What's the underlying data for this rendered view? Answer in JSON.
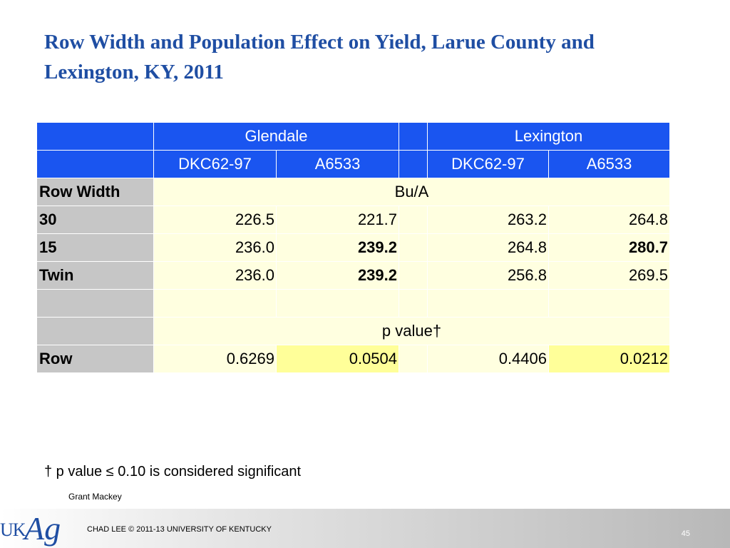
{
  "title": "Row Width and Population Effect on Yield, Larue County and Lexington, KY, 2011",
  "table": {
    "locations": [
      "Glendale",
      "Lexington"
    ],
    "hybrids": [
      "DKC62-97",
      "A6533",
      "DKC62-97",
      "A6533"
    ],
    "units_label": "Row Width",
    "units": "Bu/A",
    "rows": [
      {
        "label": "30",
        "values": [
          "226.5",
          "221.7",
          "263.2",
          "264.8"
        ]
      },
      {
        "label": "15",
        "values": [
          "236.0",
          "239.2",
          "264.8",
          "280.7"
        ]
      },
      {
        "label": "Twin",
        "values": [
          "236.0",
          "239.2",
          "256.8",
          "269.5"
        ]
      }
    ],
    "pvalue_label": "p value†",
    "pvalue_row": {
      "label": "Row",
      "values": [
        "0.6269",
        "0.0504",
        "0.4406",
        "0.0212"
      ]
    }
  },
  "footnote": "† p value ≤ 0.10 is considered significant",
  "presenter": "Grant Mackey",
  "footer": {
    "logo_uk": "UK",
    "logo_ag": "Ag",
    "copyright": "CHAD LEE © 2011-13 UNIVERSITY OF KENTUCKY",
    "slide_number": "45"
  },
  "colors": {
    "title": "#1f4ea3",
    "header_bg": "#1a55f0",
    "label_bg": "#c6c6c6",
    "cell_bg": "#ffffe0",
    "significant_bg": "#ffff99"
  }
}
